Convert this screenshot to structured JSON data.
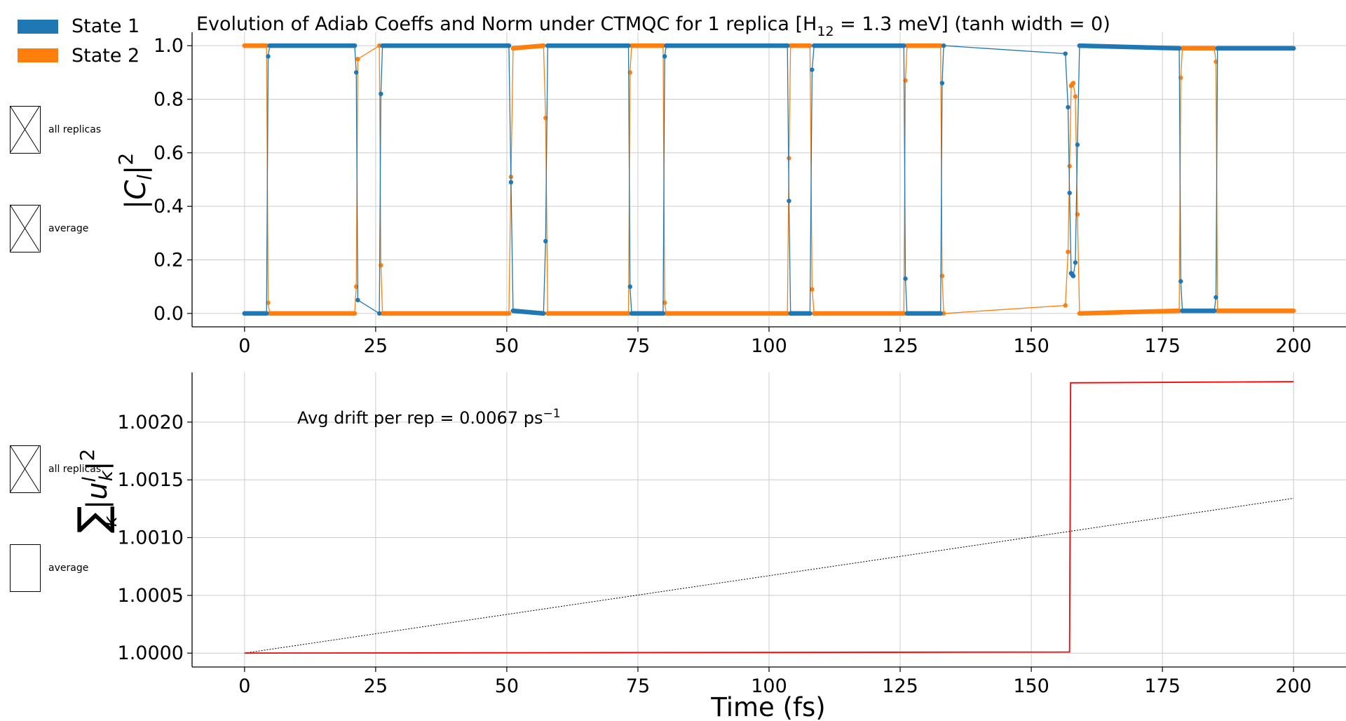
{
  "title_main": "Evolution of Adiab Coeffs and Norm under CTMQC for 1 replica [H",
  "title_sub": "12",
  "title_end": " = 1.3 meV]   (tanh width = 0)",
  "legend": [
    {
      "label": "State 1",
      "color": "#1f77b4"
    },
    {
      "label": "State 2",
      "color": "#ff7f0e"
    }
  ],
  "controls_top": {
    "all_replicas": {
      "label": "all replicas",
      "checked": true
    },
    "average": {
      "label": "average",
      "checked": true
    }
  },
  "controls_bottom": {
    "all_replicas": {
      "label": "all replicas",
      "checked": true
    },
    "average": {
      "label": "average",
      "checked": false
    }
  },
  "annotation": {
    "text": "Avg drift per rep = 0.0067 ps",
    "sup": "−1"
  },
  "colors": {
    "state1": "#1f77b4",
    "state2": "#ff7f0e",
    "norm": "#ff0000",
    "drift": "#000000",
    "grid": "#cccccc"
  },
  "chart_data": [
    {
      "type": "line",
      "title": "Evolution of Adiab Coeffs and Norm under CTMQC for 1 replica [H12 = 1.3 meV]   (tanh width = 0)",
      "xlim": [
        -10,
        210
      ],
      "ylim": [
        -0.05,
        1.05
      ],
      "ylabel": "|C_l|^2",
      "xticks": [
        "0",
        "25",
        "50",
        "75",
        "100",
        "125",
        "150",
        "175",
        "200"
      ],
      "yticks": [
        "0.0",
        "0.2",
        "0.4",
        "0.6",
        "0.8",
        "1.0"
      ],
      "grid": true,
      "legend": "top-left outside",
      "series": [
        {
          "name": "State 1",
          "x": [
            0,
            4.2,
            4.5,
            4.8,
            21,
            21.3,
            21.6,
            25.7,
            26,
            26.3,
            50.4,
            50.8,
            51.2,
            57,
            57.4,
            57.8,
            73.2,
            73.5,
            73.8,
            79.8,
            80.1,
            80.4,
            103.5,
            103.8,
            104.1,
            107.8,
            108.2,
            108.6,
            125.7,
            126,
            126.3,
            132.7,
            133,
            133.3,
            156.5,
            157,
            157.3,
            157.6,
            158,
            158.4,
            158.8,
            159.2,
            178.2,
            178.5,
            178.8,
            184.9,
            185.2,
            185.5,
            200
          ],
          "y": [
            0.0,
            0.0,
            0.96,
            1.0,
            1.0,
            0.9,
            0.05,
            0.0,
            0.82,
            1.0,
            1.0,
            0.49,
            0.01,
            0.0,
            0.27,
            1.0,
            1.0,
            0.1,
            0.0,
            0.0,
            0.96,
            1.0,
            1.0,
            0.42,
            0.0,
            0.0,
            0.91,
            1.0,
            1.0,
            0.13,
            0.0,
            0.0,
            0.86,
            1.0,
            0.97,
            0.77,
            0.45,
            0.15,
            0.14,
            0.19,
            0.63,
            1.0,
            0.99,
            0.12,
            0.01,
            0.01,
            0.06,
            0.99,
            0.99
          ]
        },
        {
          "name": "State 2",
          "x": [
            0,
            4.2,
            4.5,
            4.8,
            21,
            21.3,
            21.6,
            25.7,
            26,
            26.3,
            50.4,
            50.8,
            51.2,
            57,
            57.4,
            57.8,
            73.2,
            73.5,
            73.8,
            79.8,
            80.1,
            80.4,
            103.5,
            103.8,
            104.1,
            107.8,
            108.2,
            108.6,
            125.7,
            126,
            126.3,
            132.7,
            133,
            133.3,
            156.5,
            157,
            157.3,
            157.6,
            158,
            158.4,
            158.8,
            159.2,
            178.2,
            178.5,
            178.8,
            184.9,
            185.2,
            185.5,
            200
          ],
          "y": [
            1.0,
            1.0,
            0.04,
            0.0,
            0.0,
            0.1,
            0.95,
            1.0,
            0.18,
            0.0,
            0.0,
            0.51,
            0.99,
            1.0,
            0.73,
            0.0,
            0.0,
            0.9,
            1.0,
            1.0,
            0.04,
            0.0,
            0.0,
            0.58,
            1.0,
            1.0,
            0.09,
            0.0,
            0.0,
            0.87,
            1.0,
            1.0,
            0.14,
            0.0,
            0.03,
            0.23,
            0.55,
            0.85,
            0.86,
            0.81,
            0.37,
            0.0,
            0.01,
            0.88,
            0.99,
            0.99,
            0.94,
            0.01,
            0.01
          ]
        }
      ]
    },
    {
      "type": "line",
      "xlim": [
        -10,
        210
      ],
      "ylim": [
        0.99988,
        1.00243
      ],
      "xlabel": "Time (fs)",
      "ylabel": "Σ_k |u_k^l|^2",
      "xticks": [
        "0",
        "25",
        "50",
        "75",
        "100",
        "125",
        "150",
        "175",
        "200"
      ],
      "yticks": [
        "1.0000",
        "1.0005",
        "1.0010",
        "1.0015",
        "1.0020"
      ],
      "grid": true,
      "series": [
        {
          "name": "",
          "x": [
            0,
            75,
            157.3,
            157.5,
            200
          ],
          "y": [
            1.0,
            1.000005,
            1.00001,
            1.00234,
            1.00235
          ]
        },
        {
          "name": "",
          "x": [
            0,
            200
          ],
          "y": [
            1.0,
            1.00134
          ]
        }
      ]
    }
  ]
}
